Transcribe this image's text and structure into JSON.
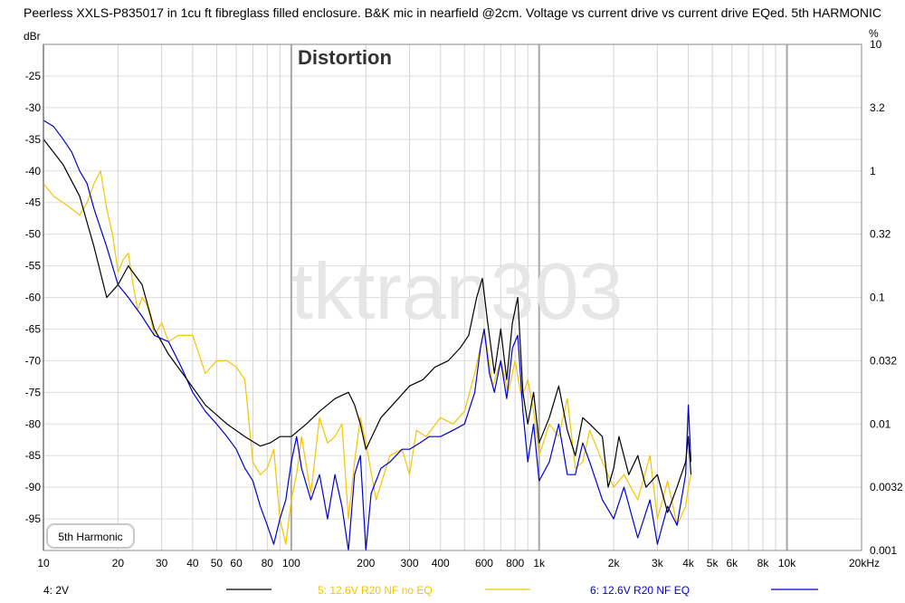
{
  "title": "Peerless XXLS-P835017 in 1cu ft fibreglass filled enclosure. B&K mic in nearfield @2cm. Voltage vs current drive vs current drive EQed. 5th HARMONIC",
  "watermark": "tktran303",
  "chart_data": {
    "type": "line",
    "title": "Distortion",
    "left_unit": "dBr",
    "right_unit": "%",
    "xscale": "log",
    "xlim": [
      10,
      20000
    ],
    "ylim": [
      -100,
      -20
    ],
    "grid": true,
    "x_ticks": [
      "10",
      "20",
      "30",
      "40",
      "50",
      "60",
      "80",
      "100",
      "200",
      "300",
      "400",
      "600",
      "800",
      "1k",
      "2k",
      "3k",
      "4k",
      "5k",
      "6k",
      "8k",
      "10k",
      "20kHz"
    ],
    "y_ticks": [
      "-25",
      "-30",
      "-35",
      "-40",
      "-45",
      "-50",
      "-55",
      "-60",
      "-65",
      "-70",
      "-75",
      "-80",
      "-85",
      "-90",
      "-95"
    ],
    "right_ticks": [
      "10",
      "3.2",
      "1",
      "0.32",
      "0.1",
      "0.032",
      "0.01",
      "0.0032",
      "0.001"
    ],
    "box_label": "5th Harmonic",
    "legend": [
      {
        "label": "4: 2V",
        "color": "#000000"
      },
      {
        "label": "5: 12.6V R20 NF no EQ",
        "color": "#f5c400"
      },
      {
        "label": "6: 12.6V R20 NF EQ",
        "color": "#0000cc"
      }
    ],
    "series": [
      {
        "color": "#000000",
        "x": [
          10,
          12,
          14,
          16,
          18,
          20,
          22,
          25,
          28,
          32,
          38,
          45,
          55,
          65,
          75,
          82,
          90,
          100,
          115,
          130,
          150,
          170,
          180,
          190,
          200,
          230,
          270,
          300,
          340,
          380,
          430,
          480,
          520,
          560,
          590,
          620,
          660,
          700,
          740,
          780,
          820,
          860,
          900,
          950,
          1000,
          1100,
          1200,
          1300,
          1400,
          1500,
          1600,
          1800,
          1900,
          2000,
          2100,
          2300,
          2500,
          2700,
          3000,
          3300,
          3600,
          3900,
          4000,
          4100
        ],
        "y": [
          -35,
          -39,
          -44,
          -52,
          -60,
          -58,
          -55,
          -58,
          -65,
          -69,
          -73,
          -77,
          -80,
          -82,
          -83.5,
          -83,
          -82,
          -82,
          -80,
          -78,
          -76,
          -75,
          -77,
          -80,
          -84,
          -79,
          -76,
          -74,
          -73,
          -71,
          -70,
          -68,
          -66,
          -60,
          -57,
          -64,
          -72,
          -65,
          -73,
          -64,
          -60,
          -75,
          -80,
          -75,
          -83,
          -79,
          -74,
          -81,
          -85,
          -79,
          -80,
          -82,
          -90,
          -87,
          -82,
          -88,
          -85,
          -90,
          -88,
          -94,
          -90,
          -86,
          -82,
          -88
        ]
      },
      {
        "color": "#f5c400",
        "x": [
          10,
          11,
          12,
          13,
          14,
          15,
          16,
          17,
          18,
          19,
          20,
          21,
          22,
          23,
          24,
          25,
          26,
          27,
          28,
          29,
          30,
          32,
          35,
          40,
          45,
          50,
          55,
          60,
          65,
          70,
          75,
          80,
          85,
          90,
          95,
          100,
          105,
          110,
          120,
          130,
          140,
          150,
          160,
          170,
          180,
          190,
          200,
          220,
          250,
          280,
          300,
          320,
          350,
          400,
          450,
          500,
          550,
          600,
          650,
          700,
          750,
          800,
          850,
          900,
          950,
          1000,
          1100,
          1200,
          1300,
          1400,
          1500,
          1600,
          1800,
          2000,
          2200,
          2500,
          2800,
          3000,
          3300,
          3600,
          3900,
          4000,
          4100
        ],
        "y": [
          -42,
          -44,
          -45,
          -46,
          -47,
          -45,
          -42,
          -40,
          -46,
          -50,
          -56,
          -54,
          -53,
          -58,
          -62,
          -60,
          -61,
          -63,
          -66,
          -65,
          -64,
          -67,
          -66,
          -66,
          -72,
          -70,
          -70,
          -71,
          -73,
          -86,
          -88,
          -87,
          -84,
          -95,
          -99,
          -92,
          -88,
          -82,
          -91,
          -79,
          -83,
          -82,
          -80,
          -95,
          -86,
          -79,
          -83,
          -92,
          -85,
          -84,
          -88,
          -81,
          -82,
          -79,
          -80,
          -78,
          -72,
          -65,
          -74,
          -70,
          -75,
          -70,
          -76,
          -73,
          -78,
          -85,
          -80,
          -82,
          -76,
          -87,
          -86,
          -81,
          -86,
          -90,
          -88,
          -92,
          -85,
          -95,
          -89,
          -96,
          -93,
          -90,
          -88
        ]
      },
      {
        "color": "#0000cc",
        "x": [
          10,
          11,
          12,
          13,
          14,
          15,
          16,
          18,
          20,
          22,
          25,
          28,
          32,
          36,
          40,
          45,
          50,
          55,
          60,
          65,
          70,
          75,
          80,
          85,
          90,
          95,
          100,
          105,
          110,
          120,
          130,
          140,
          150,
          160,
          170,
          180,
          190,
          200,
          210,
          230,
          250,
          280,
          300,
          330,
          360,
          400,
          450,
          500,
          550,
          580,
          600,
          630,
          660,
          700,
          740,
          780,
          820,
          860,
          900,
          950,
          1000,
          1100,
          1200,
          1300,
          1400,
          1500,
          1600,
          1800,
          2000,
          2200,
          2500,
          2800,
          3000,
          3300,
          3600,
          3900,
          4000,
          4100
        ],
        "y": [
          -32,
          -33,
          -35,
          -37,
          -40,
          -42,
          -46,
          -52,
          -58,
          -60,
          -63,
          -66,
          -67,
          -71,
          -75,
          -78,
          -80,
          -82,
          -84,
          -87,
          -89,
          -93,
          -96,
          -99,
          -95,
          -92,
          -86,
          -82,
          -87,
          -92,
          -88,
          -95,
          -88,
          -93,
          -100,
          -88,
          -85,
          -100,
          -91,
          -87,
          -86,
          -84,
          -84,
          -83,
          -82,
          -82,
          -81,
          -80,
          -75,
          -68,
          -65,
          -72,
          -75,
          -70,
          -76,
          -68,
          -66,
          -78,
          -86,
          -80,
          -89,
          -86,
          -80,
          -88,
          -88,
          -83,
          -86,
          -92,
          -95,
          -90,
          -98,
          -92,
          -99,
          -93,
          -96,
          -88,
          -77,
          -86
        ]
      }
    ]
  }
}
